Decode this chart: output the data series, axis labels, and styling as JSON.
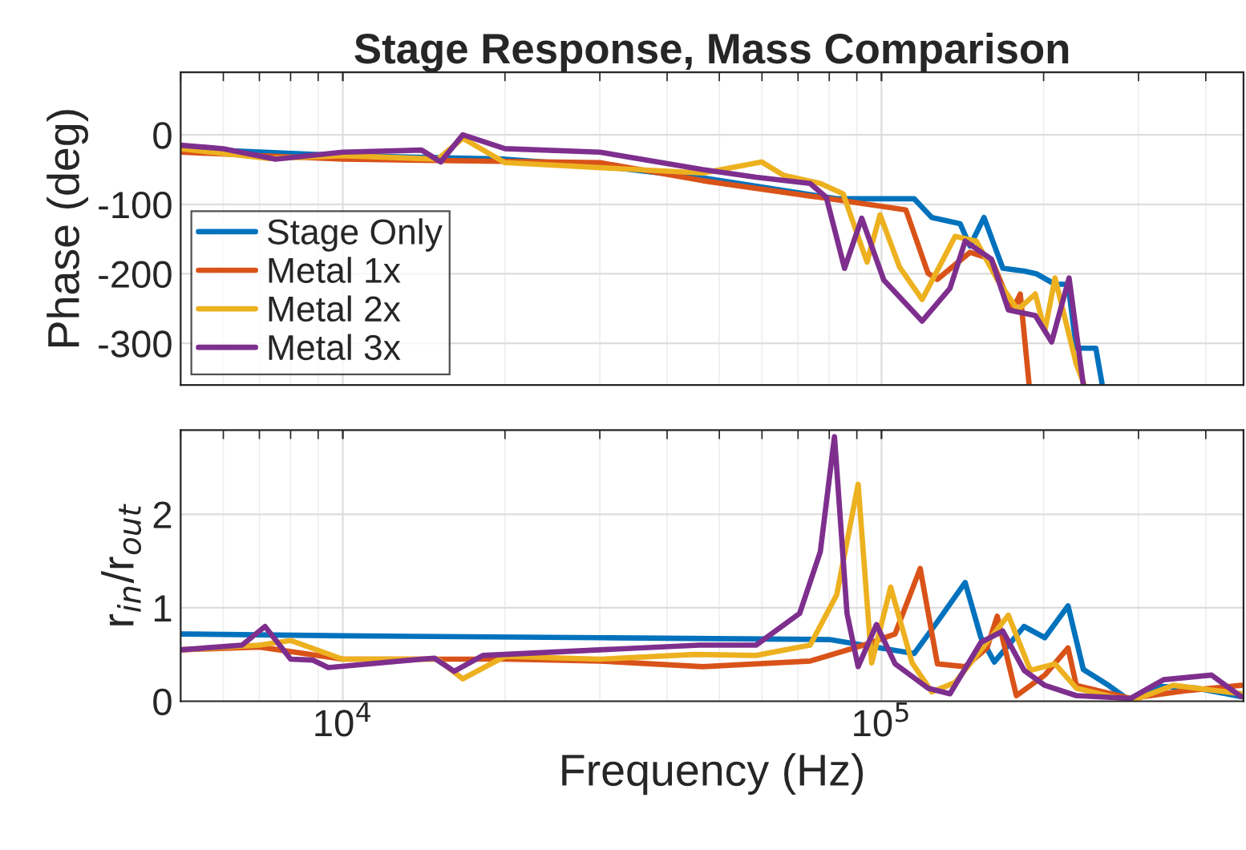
{
  "chart_data": [
    {
      "type": "line",
      "title": "Stage Response, Mass Comparison",
      "ylabel": "Phase (deg)",
      "log": "x",
      "xlim": [
        5000,
        470000
      ],
      "ylim": [
        -360,
        90
      ],
      "yticks": [
        -300,
        -200,
        -100,
        0
      ],
      "tick_labels": "y",
      "grid": true,
      "legend": "bottom left",
      "series": [
        {
          "name": "Stage Only",
          "color": "#0072bd",
          "x": [
            5000,
            10000,
            20000,
            30000,
            46600,
            82600,
            115000,
            124000,
            140000,
            146000,
            155000,
            168000,
            184000,
            194000,
            210000,
            222000,
            230000,
            250000,
            257000
          ],
          "values": [
            -20,
            -30,
            -35,
            -45,
            -62,
            -92,
            -92,
            -119,
            -128,
            -160,
            -119,
            -192,
            -196,
            -200,
            -215,
            -215,
            -307,
            -307,
            -360
          ]
        },
        {
          "name": "Metal 1x",
          "color": "#d95319",
          "x": [
            5000,
            10000,
            30000,
            46600,
            92600,
            111000,
            122000,
            127000,
            146000,
            160000,
            175000,
            181000,
            188000
          ],
          "values": [
            -25,
            -35,
            -40,
            -66,
            -99,
            -108,
            -199,
            -208,
            -169,
            -179,
            -252,
            -229,
            -360
          ]
        },
        {
          "name": "Metal 2x",
          "color": "#edb120",
          "x": [
            5000,
            7300,
            10000,
            15000,
            16700,
            20000,
            46600,
            59900,
            65700,
            77000,
            84900,
            94000,
            99400,
            108000,
            119000,
            137000,
            150000,
            164000,
            179000,
            193000,
            201000,
            210000,
            230000,
            238000
          ],
          "values": [
            -20,
            -34,
            -30,
            -35,
            -5,
            -40,
            -55,
            -39,
            -58,
            -70,
            -85,
            -183,
            -115,
            -190,
            -237,
            -146,
            -153,
            -208,
            -252,
            -229,
            -282,
            -206,
            -330,
            -360
          ]
        },
        {
          "name": "Metal 3x",
          "color": "#7e2f8e",
          "x": [
            5000,
            6000,
            7500,
            10000,
            14000,
            15200,
            16700,
            20000,
            30000,
            46600,
            58500,
            73700,
            79000,
            85400,
            91900,
            101000,
            119000,
            134000,
            143000,
            160000,
            172000,
            193000,
            207000,
            223000,
            237000
          ],
          "values": [
            -15,
            -20,
            -35,
            -25,
            -22,
            -39,
            0,
            -20,
            -25,
            -50,
            -61,
            -70,
            -90,
            -192,
            -120,
            -209,
            -268,
            -221,
            -153,
            -179,
            -252,
            -260,
            -298,
            -206,
            -360
          ]
        }
      ]
    },
    {
      "type": "line",
      "xlabel": "Frequency (Hz)",
      "ylabel": "r$_{in}$/r$_{out}$",
      "log": "x",
      "xlim": [
        5000,
        470000
      ],
      "xticks": [
        {
          "value": 10000,
          "label": "10$^{4}$"
        },
        {
          "value": 100000,
          "label": "10$^{5}$"
        }
      ],
      "ylim": [
        0,
        2.9
      ],
      "yticks": [
        0,
        1,
        2
      ],
      "grid": true,
      "series": [
        {
          "color": "#0072bd",
          "x": [
            5000,
            10000,
            30000,
            80000,
            115000,
            127000,
            143000,
            153000,
            162000,
            184000,
            201000,
            222000,
            237000,
            264000,
            290000,
            325000,
            385000,
            465000
          ],
          "values": [
            0.72,
            0.7,
            0.68,
            0.66,
            0.51,
            0.85,
            1.27,
            0.68,
            0.42,
            0.8,
            0.68,
            1.02,
            0.34,
            0.17,
            0,
            0.16,
            0.14,
            0.05
          ]
        },
        {
          "color": "#d95319",
          "x": [
            5000,
            7000,
            10000,
            20000,
            30000,
            46600,
            73700,
            92600,
            106000,
            118000,
            127000,
            143000,
            157000,
            164000,
            178000,
            201000,
            222000,
            230000,
            290000,
            364000,
            465000
          ],
          "values": [
            0.55,
            0.58,
            0.45,
            0.45,
            0.43,
            0.37,
            0.43,
            0.6,
            0.72,
            1.42,
            0.4,
            0.37,
            0.57,
            0.91,
            0.06,
            0.28,
            0.57,
            0.17,
            0.03,
            0.11,
            0.17
          ]
        },
        {
          "color": "#edb120",
          "x": [
            5000,
            7000,
            8000,
            10000,
            15000,
            16700,
            20000,
            30000,
            45000,
            58500,
            73700,
            82600,
            90500,
            95900,
            104000,
            114000,
            124000,
            137000,
            157000,
            172000,
            189000,
            210000,
            230000,
            290000,
            348000,
            465000
          ],
          "values": [
            0.55,
            0.6,
            0.65,
            0.45,
            0.45,
            0.24,
            0.48,
            0.45,
            0.5,
            0.49,
            0.6,
            1.14,
            2.32,
            0.41,
            1.22,
            0.41,
            0.1,
            0.2,
            0.63,
            0.92,
            0.33,
            0.4,
            0.14,
            0,
            0.17,
            0.08
          ]
        },
        {
          "color": "#7e2f8e",
          "x": [
            5000,
            6500,
            7170,
            8000,
            8800,
            9400,
            14000,
            14800,
            16100,
            18200,
            30000,
            46000,
            58500,
            70500,
            77000,
            81800,
            86300,
            90500,
            97900,
            106000,
            122000,
            134000,
            153000,
            168000,
            184000,
            201000,
            230000,
            290000,
            334000,
            410000,
            465000
          ],
          "values": [
            0.55,
            0.6,
            0.8,
            0.45,
            0.44,
            0.36,
            0.45,
            0.46,
            0.32,
            0.49,
            0.55,
            0.6,
            0.6,
            0.94,
            1.6,
            2.83,
            0.94,
            0.37,
            0.82,
            0.4,
            0.14,
            0.08,
            0.63,
            0.75,
            0.33,
            0.17,
            0.06,
            0.03,
            0.23,
            0.28,
            0.05
          ]
        }
      ]
    }
  ]
}
